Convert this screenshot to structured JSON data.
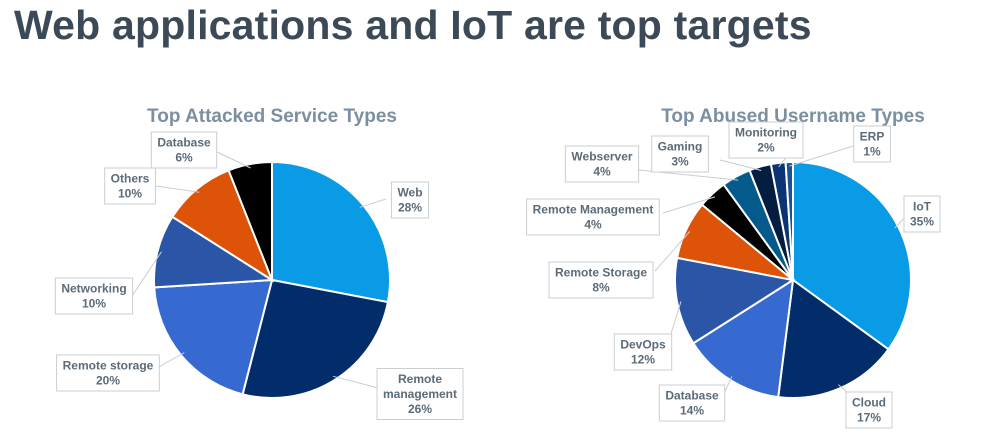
{
  "page": {
    "headline": "Web applications and IoT are top targets"
  },
  "chart_data": [
    {
      "type": "pie",
      "title": "Top Attacked Service Types",
      "slices": [
        {
          "name": "Web",
          "value": 28,
          "label": "28%",
          "color": "#0a9be6"
        },
        {
          "name": "Remote management",
          "lines": [
            "Remote",
            "management"
          ],
          "value": 26,
          "label": "26%",
          "color": "#032c6b"
        },
        {
          "name": "Remote storage",
          "value": 20,
          "label": "20%",
          "color": "#376ad0"
        },
        {
          "name": "Networking",
          "value": 10,
          "label": "10%",
          "color": "#2b56a8"
        },
        {
          "name": "Others",
          "value": 10,
          "label": "10%",
          "color": "#dd5307"
        },
        {
          "name": "Database",
          "value": 6,
          "label": "6%",
          "color": "#000000"
        }
      ]
    },
    {
      "type": "pie",
      "title": "Top Abused Username Types",
      "slices": [
        {
          "name": "IoT",
          "value": 35,
          "label": "35%",
          "color": "#0a9be6"
        },
        {
          "name": "Cloud",
          "value": 17,
          "label": "17%",
          "color": "#032c6b"
        },
        {
          "name": "Database",
          "value": 14,
          "label": "14%",
          "color": "#376ad0"
        },
        {
          "name": "DevOps",
          "value": 12,
          "label": "12%",
          "color": "#2b56a8"
        },
        {
          "name": "Remote Storage",
          "value": 8,
          "label": "8%",
          "color": "#dd5307"
        },
        {
          "name": "Remote Management",
          "value": 4,
          "label": "4%",
          "color": "#000000"
        },
        {
          "name": "Webserver",
          "value": 4,
          "label": "4%",
          "color": "#055a8c"
        },
        {
          "name": "Gaming",
          "value": 3,
          "label": "3%",
          "color": "#041d40"
        },
        {
          "name": "Monitoring",
          "value": 2,
          "label": "2%",
          "color": "#0c3372"
        },
        {
          "name": "ERP",
          "value": 1,
          "label": "1%",
          "color": "#1c4f96"
        }
      ]
    }
  ]
}
